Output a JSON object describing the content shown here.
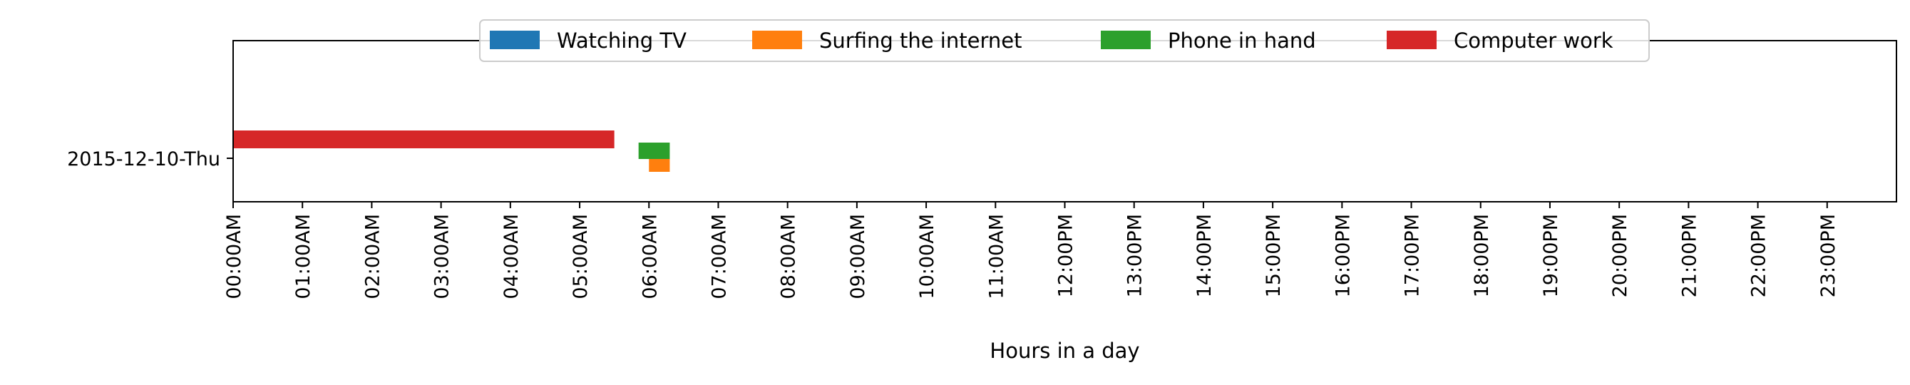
{
  "chart_data": {
    "type": "timeline",
    "xlabel": "Hours in a day",
    "ylabel": "",
    "xlim": [
      0,
      24
    ],
    "x_tick_labels": [
      "00:00AM",
      "01:00AM",
      "02:00AM",
      "03:00AM",
      "04:00AM",
      "05:00AM",
      "06:00AM",
      "07:00AM",
      "08:00AM",
      "09:00AM",
      "10:00AM",
      "11:00AM",
      "12:00PM",
      "13:00PM",
      "14:00PM",
      "15:00PM",
      "16:00PM",
      "17:00PM",
      "18:00PM",
      "19:00PM",
      "20:00PM",
      "21:00PM",
      "22:00PM",
      "23:00PM"
    ],
    "categories": [
      "2015-12-10-Thu"
    ],
    "legend_position": "top-center",
    "series": [
      {
        "name": "Watching TV",
        "color": "#1f77b4",
        "intervals": []
      },
      {
        "name": "Surfing the internet",
        "color": "#ff7f0e",
        "intervals": [
          {
            "category": "2015-12-10-Thu",
            "start": 6.0,
            "end": 6.3
          }
        ]
      },
      {
        "name": "Phone in hand",
        "color": "#2ca02c",
        "intervals": [
          {
            "category": "2015-12-10-Thu",
            "start": 5.85,
            "end": 6.3
          }
        ]
      },
      {
        "name": "Computer work",
        "color": "#d62728",
        "intervals": [
          {
            "category": "2015-12-10-Thu",
            "start": 0.0,
            "end": 5.5
          }
        ]
      }
    ]
  }
}
